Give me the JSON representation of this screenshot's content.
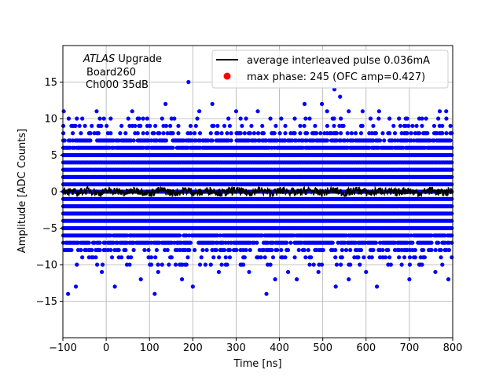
{
  "chart_data": {
    "type": "scatter",
    "title": "",
    "xlabel": "Time [ns]",
    "ylabel": "Amplitude [ADC Counts]",
    "xlim": [
      -100,
      800
    ],
    "ylim": [
      -20,
      20
    ],
    "xticks": [
      -100,
      0,
      100,
      200,
      300,
      400,
      500,
      600,
      700,
      800
    ],
    "yticks": [
      -15,
      -10,
      -5,
      0,
      5,
      10,
      15
    ],
    "grid": true,
    "legend_position": "top-right",
    "annotation": {
      "line1_italic": "ATLAS",
      "line1_rest": " Upgrade",
      "line2": "Board260",
      "line3": "Ch000 35dB"
    },
    "legend": [
      {
        "label": "average interleaved pulse 0.036mA",
        "marker": "line",
        "color": "#000000"
      },
      {
        "label": "max phase: 245 (OFC amp=0.427)",
        "marker": "dot",
        "color": "#ff0000"
      }
    ],
    "series": [
      {
        "name": "samples",
        "color": "#0000ff",
        "band_levels": [
          -7,
          -6,
          -5,
          -4,
          -3,
          -2,
          -1,
          0,
          1,
          2,
          3,
          4,
          5,
          6,
          7
        ],
        "sparse_levels": [
          8,
          9,
          10,
          -8,
          -9,
          -10
        ],
        "outliers": [
          {
            "x": -98,
            "y": 11
          },
          {
            "x": -22,
            "y": 11
          },
          {
            "x": 60,
            "y": 11
          },
          {
            "x": 137,
            "y": 12
          },
          {
            "x": 190,
            "y": 15
          },
          {
            "x": 215,
            "y": 11
          },
          {
            "x": 245,
            "y": 12
          },
          {
            "x": 300,
            "y": 11
          },
          {
            "x": 350,
            "y": 11
          },
          {
            "x": 458,
            "y": 12
          },
          {
            "x": 498,
            "y": 12
          },
          {
            "x": 510,
            "y": 11
          },
          {
            "x": 527,
            "y": 14
          },
          {
            "x": 540,
            "y": 13
          },
          {
            "x": 560,
            "y": 11
          },
          {
            "x": 592,
            "y": 11
          },
          {
            "x": 630,
            "y": 11
          },
          {
            "x": 770,
            "y": 11
          },
          {
            "x": 785,
            "y": 11
          },
          {
            "x": -88,
            "y": -14
          },
          {
            "x": -70,
            "y": -13
          },
          {
            "x": -10,
            "y": -11
          },
          {
            "x": 20,
            "y": -13
          },
          {
            "x": 80,
            "y": -12
          },
          {
            "x": 112,
            "y": -14
          },
          {
            "x": 120,
            "y": -11
          },
          {
            "x": 175,
            "y": -12
          },
          {
            "x": 200,
            "y": -13
          },
          {
            "x": 260,
            "y": -11
          },
          {
            "x": 330,
            "y": -11
          },
          {
            "x": 370,
            "y": -14
          },
          {
            "x": 390,
            "y": -12
          },
          {
            "x": 420,
            "y": -11
          },
          {
            "x": 440,
            "y": -12
          },
          {
            "x": 490,
            "y": -11
          },
          {
            "x": 530,
            "y": -13
          },
          {
            "x": 560,
            "y": -12
          },
          {
            "x": 600,
            "y": -11
          },
          {
            "x": 625,
            "y": -13
          },
          {
            "x": 700,
            "y": -12
          },
          {
            "x": 760,
            "y": -11
          },
          {
            "x": 790,
            "y": -12
          }
        ]
      },
      {
        "name": "average interleaved pulse 0.036mA",
        "color": "#000000",
        "approx_values": "noise about 0 with amplitude < 1 ADC count across -100..800 ns"
      }
    ]
  }
}
